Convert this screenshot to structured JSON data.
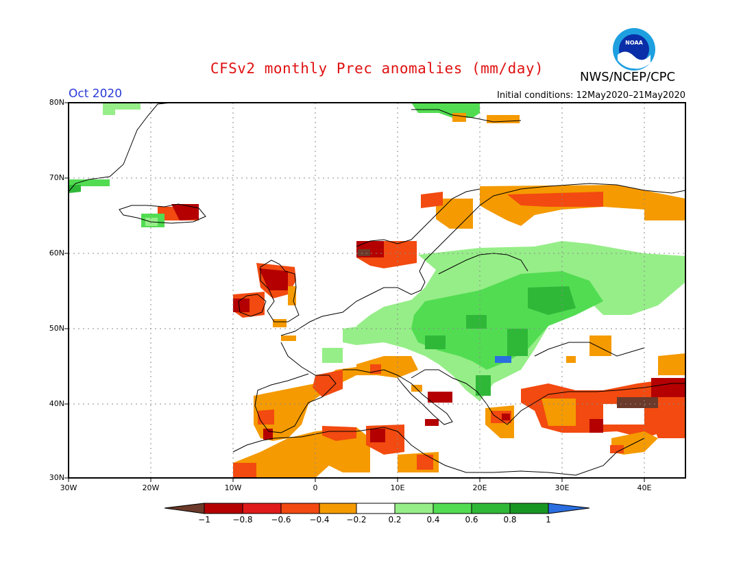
{
  "header": {
    "title": "CFSv2 monthly Prec anomalies (mm/day)",
    "month": "Oct 2020",
    "initial_conditions": "Initial conditions: 12May2020–21May2020",
    "agency": "NWS/NCEP/CPC",
    "logo_text": "NOAA"
  },
  "map": {
    "lat_ticks": [
      "80N",
      "70N",
      "60N",
      "50N",
      "40N",
      "30N"
    ],
    "lon_ticks": [
      "30W",
      "20W",
      "10W",
      "0",
      "10E",
      "20E",
      "30E",
      "40E"
    ]
  },
  "colorbar": {
    "labels": [
      "−1",
      "−0.8",
      "−0.6",
      "−0.4",
      "−0.2",
      "0.2",
      "0.4",
      "0.6",
      "0.8",
      "1"
    ],
    "colors": [
      "#e01a1a",
      "#b40000",
      "#f24a10",
      "#f59a00",
      "#ffffff",
      "#96ee88",
      "#52dc52",
      "#2fb838",
      "#189624"
    ],
    "low_color": "#6b3a2a",
    "high_color": "#2a6ee0"
  }
}
